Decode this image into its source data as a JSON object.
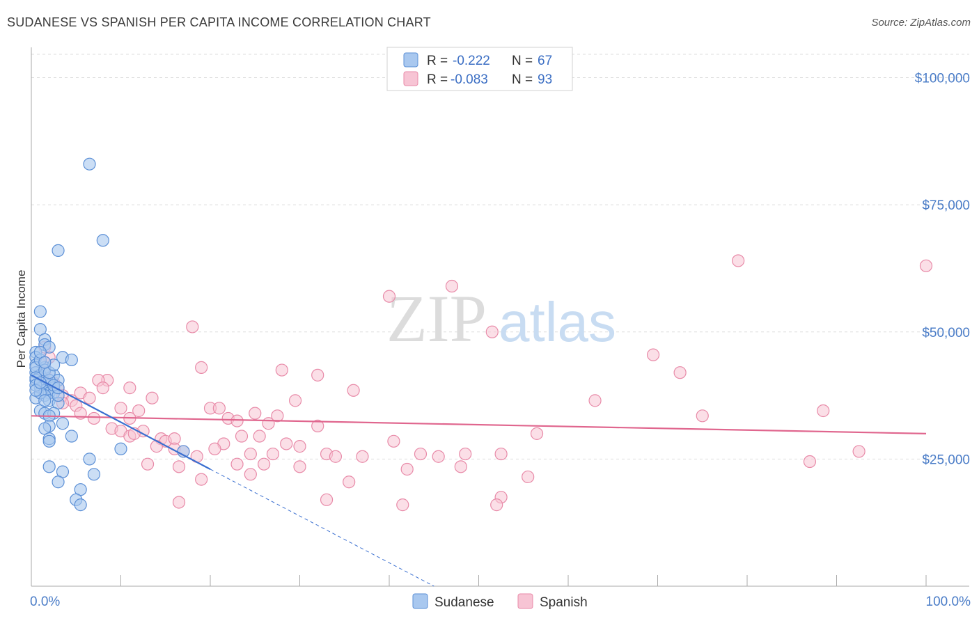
{
  "title": "SUDANESE VS SPANISH PER CAPITA INCOME CORRELATION CHART",
  "source": "Source: ZipAtlas.com",
  "watermark": {
    "zip": "ZIP",
    "atlas": "atlas"
  },
  "colors": {
    "blue_fill": "#a9c8ef",
    "blue_stroke": "#5b8fd6",
    "blue_line": "#3a6fd0",
    "pink_fill": "#f7c4d4",
    "pink_stroke": "#e88aa8",
    "pink_line": "#e0668e",
    "grid": "#dddddd",
    "axis_text": "#4a7cc7"
  },
  "legend": {
    "rows": [
      {
        "r_label": "R =",
        "r_value": "-0.222",
        "n_label": "N =",
        "n_value": "67",
        "series": "sudanese"
      },
      {
        "r_label": "R =",
        "r_value": "-0.083",
        "n_label": "N =",
        "n_value": "93",
        "series": "spanish"
      }
    ]
  },
  "bottom_legend": [
    "Sudanese",
    "Spanish"
  ],
  "chart_data": {
    "type": "scatter",
    "title": "SUDANESE VS SPANISH PER CAPITA INCOME CORRELATION CHART",
    "xlabel": "",
    "ylabel": "Per Capita Income",
    "xlim": [
      0,
      100
    ],
    "ylim": [
      0,
      105000
    ],
    "x_tick_labels": [
      "0.0%",
      "100.0%"
    ],
    "y_ticks": [
      25000,
      50000,
      75000,
      100000
    ],
    "y_tick_labels": [
      "$25,000",
      "$50,000",
      "$75,000",
      "$100,000"
    ],
    "series": [
      {
        "name": "Sudanese",
        "trend": {
          "x0": 0,
          "y0": 41500,
          "x1": 20,
          "y1": 23000,
          "dashed_to_x": 45,
          "dashed_to_y": 0
        },
        "points": [
          [
            6.5,
            83000
          ],
          [
            8,
            68000
          ],
          [
            3,
            66000
          ],
          [
            1,
            54000
          ],
          [
            1,
            50500
          ],
          [
            1.5,
            48500
          ],
          [
            1.5,
            47500
          ],
          [
            2,
            47000
          ],
          [
            0.5,
            46000
          ],
          [
            0.5,
            45000
          ],
          [
            3.5,
            45000
          ],
          [
            4.5,
            44500
          ],
          [
            0.5,
            43500
          ],
          [
            1.5,
            43000
          ],
          [
            0.5,
            42000
          ],
          [
            1,
            41500
          ],
          [
            2.5,
            41500
          ],
          [
            0.5,
            40500
          ],
          [
            3,
            40500
          ],
          [
            1.5,
            40000
          ],
          [
            2,
            39500
          ],
          [
            2.5,
            39000
          ],
          [
            1,
            39000
          ],
          [
            1.5,
            38500
          ],
          [
            2,
            38000
          ],
          [
            2.5,
            38000
          ],
          [
            1.5,
            37500
          ],
          [
            0.5,
            37000
          ],
          [
            2,
            36500
          ],
          [
            3,
            36000
          ],
          [
            1,
            34500
          ],
          [
            1.5,
            34000
          ],
          [
            2.5,
            34000
          ],
          [
            2,
            33500
          ],
          [
            3.5,
            32000
          ],
          [
            2,
            31500
          ],
          [
            1.5,
            31000
          ],
          [
            4.5,
            29500
          ],
          [
            2,
            29000
          ],
          [
            2,
            28500
          ],
          [
            10,
            27000
          ],
          [
            17,
            26500
          ],
          [
            6.5,
            25000
          ],
          [
            2,
            23500
          ],
          [
            3.5,
            22500
          ],
          [
            7,
            22000
          ],
          [
            3,
            20500
          ],
          [
            5.5,
            19000
          ],
          [
            5,
            17000
          ],
          [
            5.5,
            16000
          ],
          [
            0.5,
            43000
          ],
          [
            1,
            44500
          ],
          [
            0.5,
            41000
          ],
          [
            1.5,
            42500
          ],
          [
            2,
            40500
          ],
          [
            2.5,
            39500
          ],
          [
            1,
            38000
          ],
          [
            3,
            37500
          ],
          [
            0.5,
            39500
          ],
          [
            1.5,
            36500
          ],
          [
            2,
            42000
          ],
          [
            1,
            46000
          ],
          [
            2.5,
            43500
          ],
          [
            0.5,
            38500
          ],
          [
            1.5,
            44000
          ],
          [
            1,
            40000
          ],
          [
            3,
            39000
          ]
        ]
      },
      {
        "name": "Spanish",
        "trend": {
          "x0": 0,
          "y0": 33500,
          "x1": 100,
          "y1": 30000
        },
        "points": [
          [
            79,
            64000
          ],
          [
            100,
            63000
          ],
          [
            47,
            59000
          ],
          [
            40,
            57000
          ],
          [
            51.5,
            50000
          ],
          [
            18,
            51000
          ],
          [
            1.5,
            47000
          ],
          [
            2,
            45000
          ],
          [
            69.5,
            45500
          ],
          [
            1.5,
            44000
          ],
          [
            19,
            43000
          ],
          [
            28,
            42500
          ],
          [
            32,
            41500
          ],
          [
            72.5,
            42000
          ],
          [
            1.5,
            42000
          ],
          [
            8.5,
            40500
          ],
          [
            2.5,
            40000
          ],
          [
            7.5,
            40500
          ],
          [
            11,
            39000
          ],
          [
            3,
            39000
          ],
          [
            8,
            39000
          ],
          [
            36,
            38500
          ],
          [
            5.5,
            38000
          ],
          [
            3.5,
            37500
          ],
          [
            6.5,
            37000
          ],
          [
            13.5,
            37000
          ],
          [
            4.5,
            36500
          ],
          [
            3.5,
            36000
          ],
          [
            29.5,
            36500
          ],
          [
            63,
            36500
          ],
          [
            5,
            35500
          ],
          [
            10,
            35000
          ],
          [
            20,
            35000
          ],
          [
            21,
            35000
          ],
          [
            12,
            34500
          ],
          [
            5.5,
            34000
          ],
          [
            25,
            34000
          ],
          [
            27.5,
            33500
          ],
          [
            75,
            33500
          ],
          [
            88.5,
            34500
          ],
          [
            7,
            33000
          ],
          [
            11,
            33000
          ],
          [
            22,
            33000
          ],
          [
            23,
            32500
          ],
          [
            26.5,
            32000
          ],
          [
            32,
            31500
          ],
          [
            9,
            31000
          ],
          [
            10,
            30500
          ],
          [
            12.5,
            30500
          ],
          [
            23.5,
            29500
          ],
          [
            11,
            29500
          ],
          [
            11.5,
            30000
          ],
          [
            14.5,
            29000
          ],
          [
            25.5,
            29500
          ],
          [
            56.5,
            30000
          ],
          [
            15,
            28500
          ],
          [
            16,
            29000
          ],
          [
            40.5,
            28500
          ],
          [
            21.5,
            28000
          ],
          [
            28.5,
            28000
          ],
          [
            30,
            27500
          ],
          [
            14,
            27500
          ],
          [
            16,
            27000
          ],
          [
            20.5,
            27000
          ],
          [
            17,
            26500
          ],
          [
            24.5,
            26000
          ],
          [
            27,
            26000
          ],
          [
            33,
            26000
          ],
          [
            45.5,
            25500
          ],
          [
            43.5,
            26000
          ],
          [
            48.5,
            26000
          ],
          [
            52.5,
            26000
          ],
          [
            34,
            25500
          ],
          [
            37,
            25500
          ],
          [
            18.5,
            25500
          ],
          [
            23,
            24000
          ],
          [
            26,
            24000
          ],
          [
            13,
            24000
          ],
          [
            16.5,
            23500
          ],
          [
            30,
            23500
          ],
          [
            42,
            23000
          ],
          [
            48,
            23500
          ],
          [
            92.5,
            26500
          ],
          [
            87,
            24500
          ],
          [
            24.5,
            22000
          ],
          [
            55.5,
            21500
          ],
          [
            19,
            21000
          ],
          [
            35.5,
            20500
          ],
          [
            33,
            17000
          ],
          [
            41.5,
            16000
          ],
          [
            52.5,
            17500
          ],
          [
            52,
            16000
          ],
          [
            16.5,
            16500
          ]
        ]
      }
    ]
  }
}
